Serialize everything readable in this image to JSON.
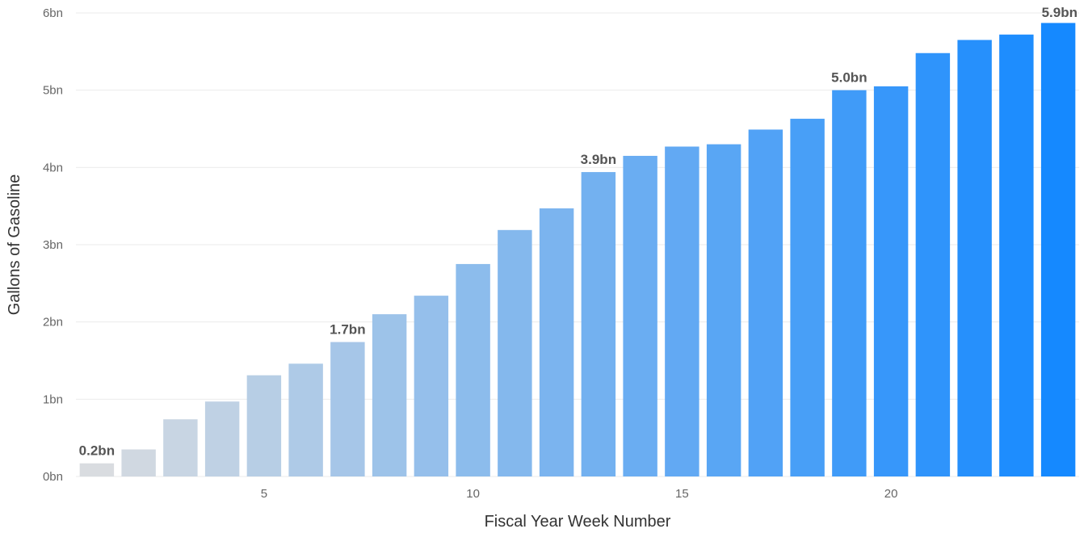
{
  "chart_data": {
    "type": "bar",
    "title": "",
    "xlabel": "Fiscal Year Week Number",
    "ylabel": "Gallons of Gasoline",
    "x": [
      1,
      2,
      3,
      4,
      5,
      6,
      7,
      8,
      9,
      10,
      11,
      12,
      13,
      14,
      15,
      16,
      17,
      18,
      19,
      20,
      21,
      22,
      23,
      24
    ],
    "values": [
      0.17,
      0.35,
      0.74,
      0.97,
      1.31,
      1.46,
      1.74,
      2.1,
      2.34,
      2.75,
      3.19,
      3.47,
      3.94,
      4.15,
      4.27,
      4.3,
      4.49,
      4.63,
      5.0,
      5.05,
      5.48,
      5.65,
      5.72,
      5.87
    ],
    "ylim": [
      0,
      6
    ],
    "y_ticks": [
      0,
      1,
      2,
      3,
      4,
      5,
      6
    ],
    "y_tick_labels": [
      "0bn",
      "1bn",
      "2bn",
      "3bn",
      "4bn",
      "5bn",
      "6bn"
    ],
    "x_ticks": [
      5,
      10,
      15,
      20
    ],
    "x_tick_labels": [
      "5",
      "10",
      "15",
      "20"
    ],
    "data_labels": [
      {
        "x": 1,
        "text": "0.2bn"
      },
      {
        "x": 7,
        "text": "1.7bn"
      },
      {
        "x": 13,
        "text": "3.9bn"
      },
      {
        "x": 19,
        "text": "5.0bn"
      },
      {
        "x": 24,
        "text": "5.9bn"
      }
    ],
    "colors": {
      "low": "#d9dce0",
      "high": "#1589ff"
    },
    "grid": true,
    "legend": "none"
  }
}
